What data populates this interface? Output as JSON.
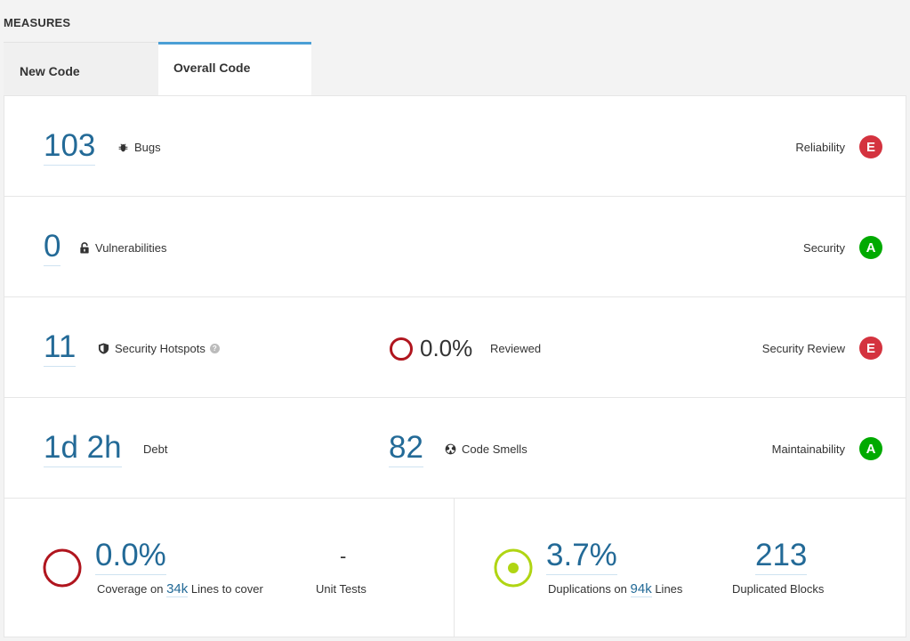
{
  "section_title": "MEASURES",
  "tabs": [
    {
      "label": "New Code"
    },
    {
      "label": "Overall Code"
    }
  ],
  "reliability": {
    "value": "103",
    "label": "Bugs",
    "rating_label": "Reliability",
    "rating": "E"
  },
  "security": {
    "value": "0",
    "label": "Vulnerabilities",
    "rating_label": "Security",
    "rating": "A"
  },
  "hotspots": {
    "value": "11",
    "label": "Security Hotspots",
    "help": "?",
    "reviewed_value": "0.0%",
    "reviewed_label": "Reviewed",
    "rating_label": "Security Review",
    "rating": "E"
  },
  "maintainability": {
    "debt_value": "1d 2h",
    "debt_label": "Debt",
    "smells_value": "82",
    "smells_label": "Code Smells",
    "rating_label": "Maintainability",
    "rating": "A"
  },
  "coverage": {
    "value": "0.0%",
    "prefix": "Coverage on",
    "lines": "34k",
    "suffix": "Lines to cover",
    "unit_tests_value": "-",
    "unit_tests_label": "Unit Tests"
  },
  "duplications": {
    "value": "3.7%",
    "prefix": "Duplications on",
    "lines": "94k",
    "suffix": "Lines",
    "blocks_value": "213",
    "blocks_label": "Duplicated Blocks"
  },
  "colors": {
    "link": "#236a97",
    "rating_e": "#d4333f",
    "rating_a": "#00aa00",
    "coverage_ring": "#b0151e",
    "duplication_ring": "#b0d513",
    "tab_accent": "#4b9fd5"
  }
}
